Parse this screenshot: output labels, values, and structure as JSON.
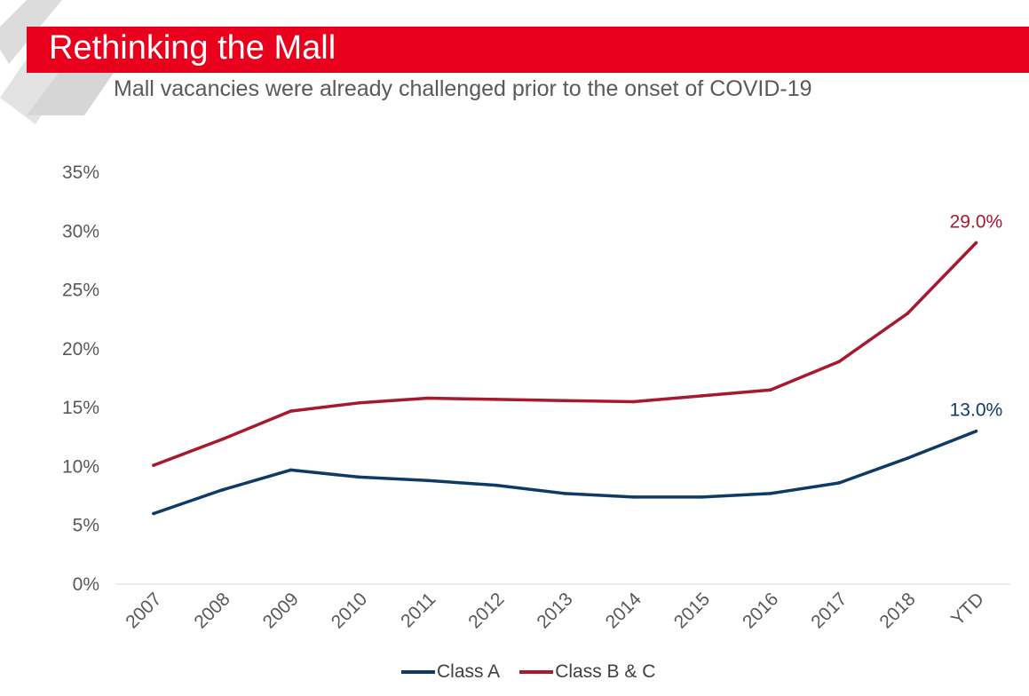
{
  "slide": {
    "title": "Rethinking the Mall",
    "subtitle": "Mall vacancies were already challenged prior to the onset of COVID-19"
  },
  "colors": {
    "title_bar": "#e8001c",
    "class_a": "#0e3a66",
    "class_bc": "#a6192e",
    "deco_gray": "#d6d6d6"
  },
  "chart_data": {
    "type": "line",
    "title": "",
    "xlabel": "",
    "ylabel": "",
    "categories": [
      "2007",
      "2008",
      "2009",
      "2010",
      "2011",
      "2012",
      "2013",
      "2014",
      "2015",
      "2016",
      "2017",
      "2018",
      "YTD"
    ],
    "ylim": [
      0,
      35
    ],
    "yticks": [
      0,
      5,
      10,
      15,
      20,
      25,
      30,
      35
    ],
    "ytick_labels": [
      "0%",
      "5%",
      "10%",
      "15%",
      "20%",
      "25%",
      "30%",
      "35%"
    ],
    "grid": false,
    "legend_position": "bottom",
    "series": [
      {
        "name": "Class A",
        "color": "#0e3a66",
        "values": [
          6.0,
          8.0,
          9.7,
          9.1,
          8.8,
          8.4,
          7.7,
          7.4,
          7.4,
          7.7,
          8.6,
          10.7,
          13.0
        ],
        "end_label": "13.0%"
      },
      {
        "name": "Class B & C",
        "color": "#a6192e",
        "values": [
          10.1,
          12.3,
          14.7,
          15.4,
          15.8,
          15.7,
          15.6,
          15.5,
          16.0,
          16.5,
          18.9,
          23.0,
          29.0
        ],
        "end_label": "29.0%"
      }
    ]
  }
}
